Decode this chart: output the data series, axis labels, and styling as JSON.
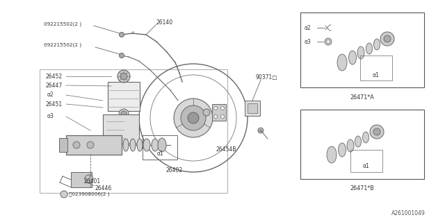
{
  "bg_color": "#ffffff",
  "line_col": "#666666",
  "thin_col": "#888888",
  "dark_col": "#444444",
  "footer": "A261001049",
  "labels": {
    "092215502_top": "092215502(2 )",
    "26140": "26140",
    "092215502_mid": "092215502(2 )",
    "90371": "90371□",
    "26452": "26452",
    "26447": "26447",
    "a2": "α2",
    "26451": "26451",
    "a3": "α3",
    "o1": "α1",
    "26454B": "26454B",
    "26402": "26402",
    "26401": "26401",
    "26446": "26446",
    "N023908006": "ⓝ023908006(2 )",
    "a2_boxA": "α2",
    "a3_boxA": "α3",
    "o1_boxA": "α1",
    "26471A": "26471*A",
    "o1_boxB": "α1",
    "26471B": "26471*B"
  },
  "figsize": [
    6.4,
    3.2
  ],
  "dpi": 100
}
